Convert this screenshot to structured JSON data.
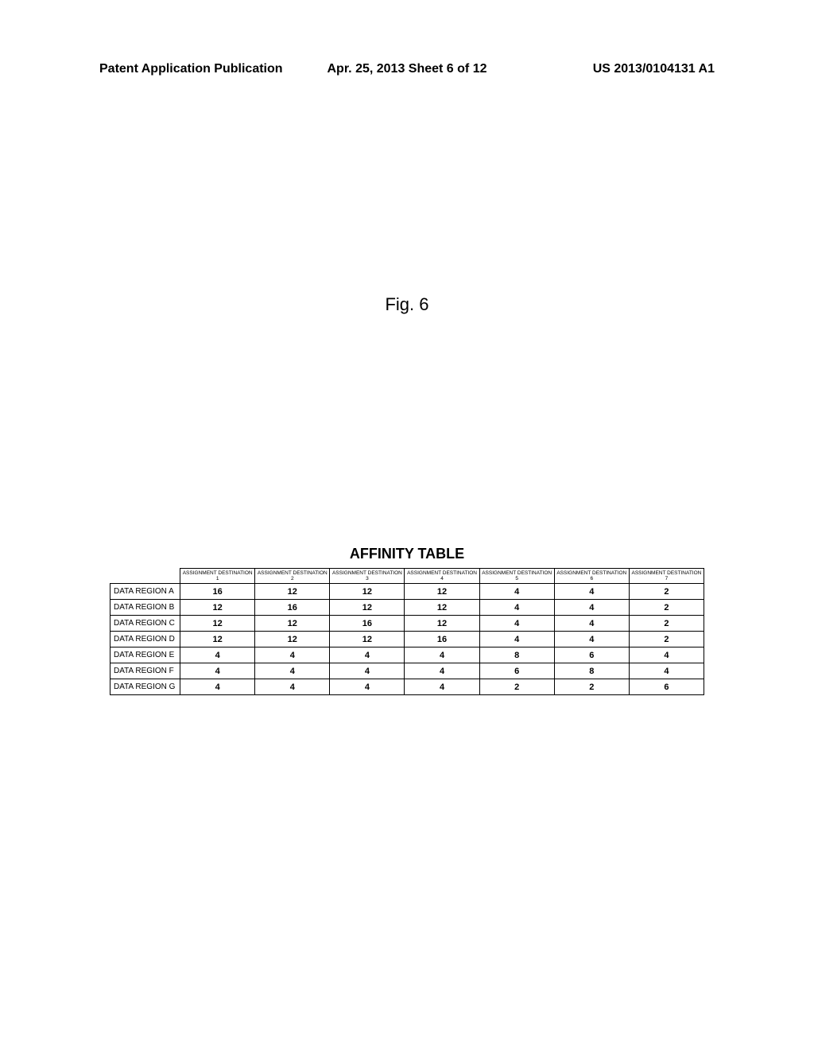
{
  "header": {
    "left": "Patent Application Publication",
    "center": "Apr. 25, 2013  Sheet 6 of 12",
    "right": "US 2013/0104131 A1"
  },
  "figure_label": "Fig. 6",
  "table": {
    "title": "AFFINITY TABLE",
    "columns": [
      "ASSIGNMENT DESTINATION 1",
      "ASSIGNMENT DESTINATION 2",
      "ASSIGNMENT DESTINATION 3",
      "ASSIGNMENT DESTINATION 4",
      "ASSIGNMENT DESTINATION 5",
      "ASSIGNMENT DESTINATION 6",
      "ASSIGNMENT DESTINATION 7"
    ],
    "rows": [
      {
        "label": "DATA REGION A",
        "values": [
          "16",
          "12",
          "12",
          "12",
          "4",
          "4",
          "2"
        ]
      },
      {
        "label": "DATA REGION B",
        "values": [
          "12",
          "16",
          "12",
          "12",
          "4",
          "4",
          "2"
        ]
      },
      {
        "label": "DATA REGION C",
        "values": [
          "12",
          "12",
          "16",
          "12",
          "4",
          "4",
          "2"
        ]
      },
      {
        "label": "DATA REGION D",
        "values": [
          "12",
          "12",
          "12",
          "16",
          "4",
          "4",
          "2"
        ]
      },
      {
        "label": "DATA REGION E",
        "values": [
          "4",
          "4",
          "4",
          "4",
          "8",
          "6",
          "4"
        ]
      },
      {
        "label": "DATA REGION F",
        "values": [
          "4",
          "4",
          "4",
          "4",
          "6",
          "8",
          "4"
        ]
      },
      {
        "label": "DATA REGION G",
        "values": [
          "4",
          "4",
          "4",
          "4",
          "2",
          "2",
          "6"
        ]
      }
    ]
  }
}
